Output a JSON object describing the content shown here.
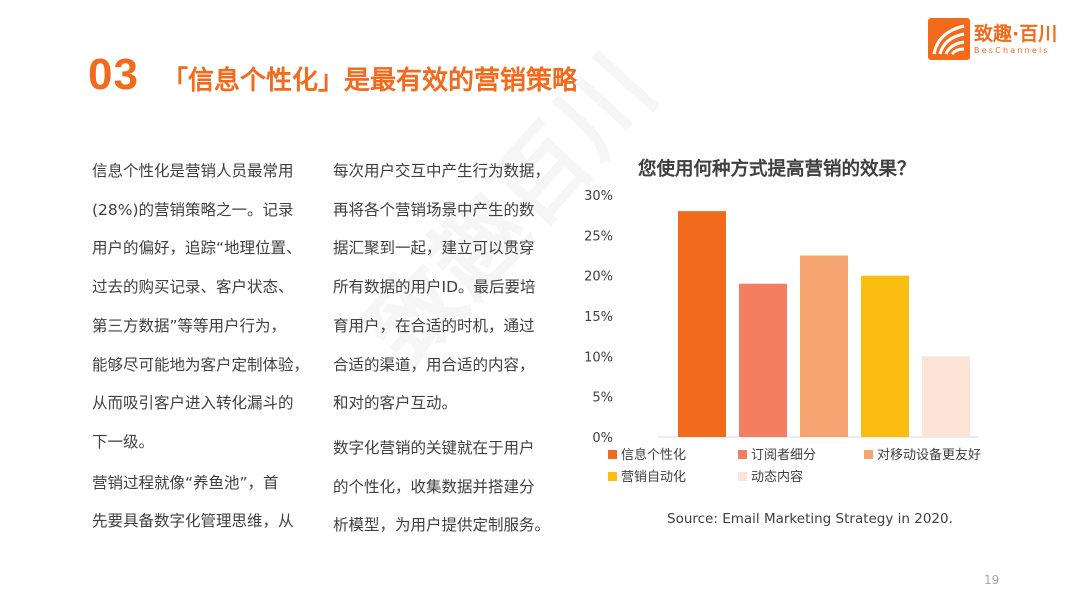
{
  "heading": {
    "number": "03",
    "title": "「信息个性化」是最有效的营销策略"
  },
  "logo": {
    "name": "致趣·百川",
    "sub": "BesChannels"
  },
  "watermark": "致趣百川",
  "body": {
    "left_col": [
      "信息个性化是营销人员最常用",
      "(28%)的营销策略之一。记录",
      "用户的偏好，追踪“地理位置、",
      "过去的购买记录、客户状态、",
      "第三方数据”等等用户行为，",
      "能够尽可能地为客户定制体验，",
      "从而吸引客户进入转化漏斗的",
      "下一级。"
    ],
    "left_col2": [
      "营销过程就像“养鱼池”，首",
      "先要具备数字化管理思维，从"
    ],
    "right_col": [
      "每次用户交互中产生行为数据，",
      "再将各个营销场景中产生的数",
      "据汇聚到一起，建立可以贯穿",
      "所有数据的用户ID。最后要培",
      "育用户，在合适的时机，通过",
      "合适的渠道，用合适的内容，",
      "和对的客户互动。"
    ],
    "right_col2": [
      "数字化营销的关键就在于用户",
      "的个性化，收集数据并搭建分",
      "析模型，为用户提供定制服务。"
    ]
  },
  "chart_data": {
    "type": "bar",
    "title": "您使用何种方式提高营销的效果？",
    "categories": [
      "信息个性化",
      "订阅者细分",
      "对移动设备更友好",
      "营销自动化",
      "动态内容"
    ],
    "values": [
      28,
      19,
      22.5,
      20,
      10
    ],
    "colors": [
      "#f26b1d",
      "#f47e60",
      "#f7a570",
      "#fbbd12",
      "#fbe4d5"
    ],
    "ylim": [
      0,
      30
    ],
    "yticks": [
      "0%",
      "5%",
      "10%",
      "15%",
      "20%",
      "25%",
      "30%"
    ],
    "grid": false,
    "legend": "bottom"
  },
  "source": "Source: Email Marketing Strategy in 2020.",
  "page_number": "19"
}
